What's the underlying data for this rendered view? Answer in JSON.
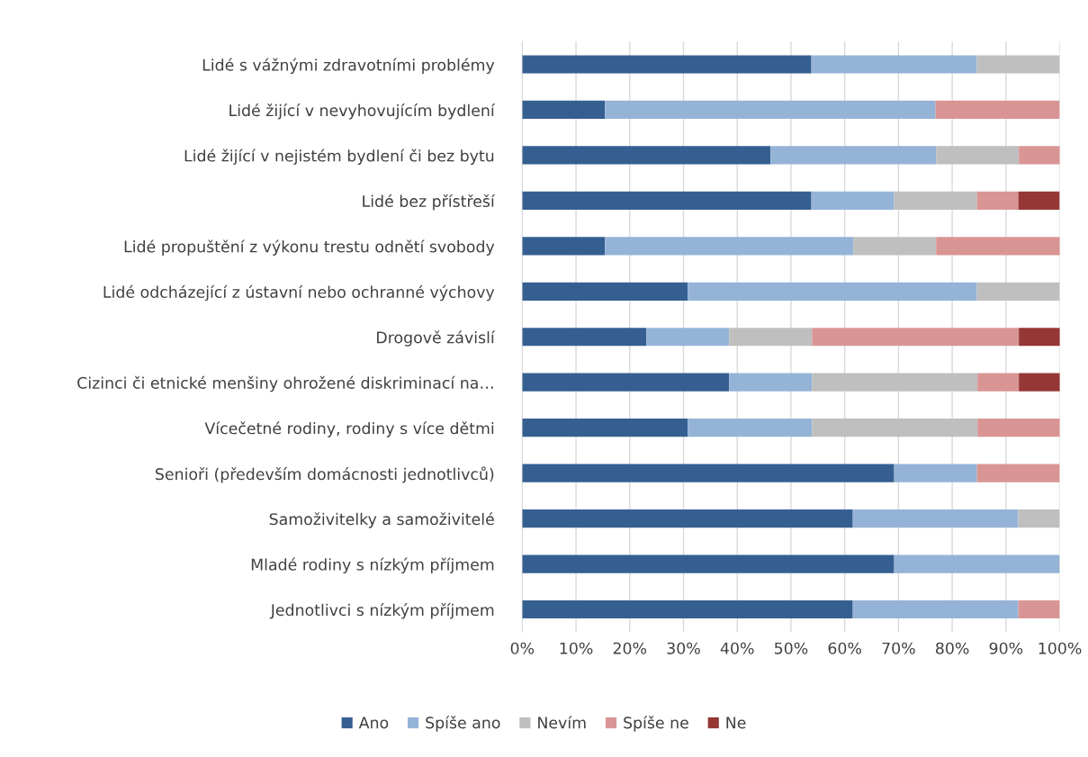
{
  "chart_data": {
    "type": "bar",
    "orientation": "horizontal",
    "stacked": true,
    "categories": [
      "Lidé s vážnými zdravotními problémy",
      "Lidé žijící v nevyhovujícím bydlení",
      "Lidé žijící v nejistém bydlení či bez bytu",
      "Lidé bez přístřeší",
      "Lidé propuštění z výkonu trestu odnětí svobody",
      "Lidé odcházející z ústavní nebo ochranné výchovy",
      "Drogově závislí",
      "Cizinci či etnické menšiny ohrožené diskriminací na…",
      "Vícečetné rodiny, rodiny s více dětmi",
      "Senioři (především domácnosti jednotlivců)",
      "Samoživitelky a samoživitelé",
      "Mladé rodiny s nízkým příjmem",
      "Jednotlivci s nízkým příjmem"
    ],
    "series": [
      {
        "name": "Ano",
        "color": "#355f91",
        "values": [
          53.8,
          15.4,
          46.2,
          53.8,
          15.4,
          30.8,
          23.1,
          38.5,
          30.8,
          69.2,
          61.5,
          69.2,
          61.5
        ]
      },
      {
        "name": "Spíše ano",
        "color": "#95b3d7",
        "values": [
          30.8,
          61.5,
          30.8,
          15.4,
          46.2,
          53.8,
          15.4,
          15.4,
          23.1,
          15.4,
          30.8,
          30.8,
          30.8
        ]
      },
      {
        "name": "Nevím",
        "color": "#bfbfbf",
        "values": [
          15.4,
          0,
          15.4,
          15.4,
          15.4,
          15.4,
          15.4,
          30.8,
          30.8,
          0,
          7.7,
          0,
          0
        ]
      },
      {
        "name": "Spíše ne",
        "color": "#d99594",
        "values": [
          0,
          23.1,
          7.7,
          7.7,
          23.1,
          0,
          38.5,
          7.7,
          15.4,
          15.4,
          0,
          0,
          7.7
        ]
      },
      {
        "name": "Ne",
        "color": "#953735",
        "values": [
          0,
          0,
          0,
          7.7,
          0,
          0,
          7.7,
          7.7,
          0,
          0,
          0,
          0,
          0
        ]
      }
    ],
    "xlim": [
      0,
      100
    ],
    "xticks": [
      {
        "value": 0,
        "label": "0%"
      },
      {
        "value": 10,
        "label": "10%"
      },
      {
        "value": 20,
        "label": "20%"
      },
      {
        "value": 30,
        "label": "30%"
      },
      {
        "value": 40,
        "label": "40%"
      },
      {
        "value": 50,
        "label": "50%"
      },
      {
        "value": 60,
        "label": "60%"
      },
      {
        "value": 70,
        "label": "70%"
      },
      {
        "value": 80,
        "label": "80%"
      },
      {
        "value": 90,
        "label": "90%"
      },
      {
        "value": 100,
        "label": "100%"
      }
    ],
    "grid": "x",
    "legend": "bottom"
  }
}
